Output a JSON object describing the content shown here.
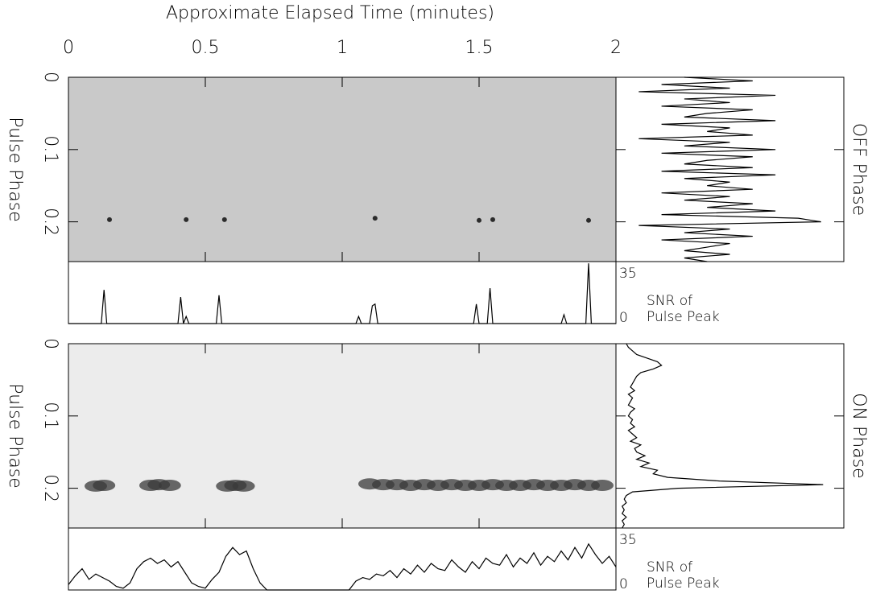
{
  "chart_data": [
    {
      "type": "heatmap",
      "title": "Approximate Elapsed Time (minutes)",
      "ylabel": "Pulse Phase",
      "side_label": "OFF Phase",
      "xlim": [
        0,
        2
      ],
      "xticks": [
        0,
        0.5,
        1,
        1.5,
        2
      ],
      "ylim": [
        0,
        0.255
      ],
      "yticks": [
        0,
        0.1,
        0.2
      ],
      "background": "#c9c9c9",
      "color": "#1a1a1a",
      "spots": {
        "x": [
          0.15,
          0.43,
          0.57,
          1.12,
          1.5,
          1.55,
          1.9
        ],
        "y": [
          0.197,
          0.197,
          0.197,
          0.195,
          0.198,
          0.197,
          0.198
        ]
      }
    },
    {
      "type": "line",
      "label_lines": [
        "SNR of",
        "Pulse Peak"
      ],
      "xlim": [
        0,
        2
      ],
      "ylim": [
        0,
        35
      ],
      "yticks": [
        0,
        35
      ],
      "color": "#000",
      "x": [
        0,
        0.12,
        0.13,
        0.14,
        0.4,
        0.41,
        0.42,
        0.43,
        0.44,
        0.54,
        0.55,
        0.56,
        1.05,
        1.06,
        1.07,
        1.1,
        1.11,
        1.12,
        1.13,
        1.48,
        1.49,
        1.5,
        1.53,
        1.54,
        1.55,
        1.8,
        1.81,
        1.82,
        1.89,
        1.9,
        1.91,
        2
      ],
      "values": [
        0,
        0,
        19,
        0,
        0,
        15,
        0,
        4,
        0,
        0,
        16,
        0,
        0,
        4,
        0,
        0,
        10,
        11,
        0,
        0,
        11,
        0,
        0,
        20,
        0,
        0,
        5,
        0,
        0,
        34,
        0,
        0
      ]
    },
    {
      "type": "profile",
      "xlim": [
        0,
        10
      ],
      "ylim": [
        0,
        0.255
      ],
      "color": "#000",
      "phase": [
        0,
        0.005,
        0.01,
        0.015,
        0.02,
        0.025,
        0.03,
        0.035,
        0.04,
        0.045,
        0.05,
        0.055,
        0.06,
        0.065,
        0.07,
        0.075,
        0.08,
        0.085,
        0.09,
        0.095,
        0.1,
        0.105,
        0.11,
        0.115,
        0.12,
        0.125,
        0.13,
        0.135,
        0.14,
        0.145,
        0.15,
        0.155,
        0.16,
        0.165,
        0.17,
        0.175,
        0.18,
        0.185,
        0.19,
        0.195,
        0.2,
        0.205,
        0.21,
        0.215,
        0.22,
        0.225,
        0.23,
        0.235,
        0.24,
        0.245,
        0.25,
        0.255
      ],
      "values": [
        3,
        6,
        2,
        5,
        1,
        7,
        3,
        5,
        2,
        6,
        4,
        3,
        7,
        2,
        5,
        4,
        6,
        1,
        5,
        3,
        7,
        2,
        6,
        4,
        3,
        6,
        2,
        7,
        3,
        5,
        4,
        6,
        2,
        5,
        3,
        6,
        4,
        7,
        2,
        8,
        9,
        1,
        5,
        3,
        6,
        2,
        5,
        4,
        3,
        5,
        3,
        4
      ]
    },
    {
      "type": "heatmap",
      "ylabel": "Pulse Phase",
      "side_label": "ON Phase",
      "xlim": [
        0,
        2
      ],
      "ylim": [
        0,
        0.255
      ],
      "yticks": [
        0,
        0.1,
        0.2
      ],
      "background": "#ececec",
      "color": "#3a3a3a",
      "spots": {
        "x": [
          0.1,
          0.13,
          0.3,
          0.33,
          0.37,
          0.58,
          0.61,
          0.64,
          1.1,
          1.15,
          1.2,
          1.25,
          1.3,
          1.35,
          1.4,
          1.45,
          1.5,
          1.55,
          1.6,
          1.65,
          1.7,
          1.75,
          1.8,
          1.85,
          1.9,
          1.95
        ],
        "y": [
          0.197,
          0.196,
          0.196,
          0.195,
          0.196,
          0.197,
          0.196,
          0.197,
          0.194,
          0.195,
          0.195,
          0.196,
          0.195,
          0.196,
          0.195,
          0.196,
          0.196,
          0.195,
          0.196,
          0.196,
          0.195,
          0.196,
          0.196,
          0.195,
          0.196,
          0.196
        ]
      }
    },
    {
      "type": "line",
      "label_lines": [
        "SNR of",
        "Pulse Peak"
      ],
      "xlim": [
        0,
        2
      ],
      "ylim": [
        0,
        35
      ],
      "yticks": [
        0,
        35
      ],
      "color": "#000",
      "x": [
        0,
        0.025,
        0.05,
        0.075,
        0.1,
        0.125,
        0.15,
        0.175,
        0.2,
        0.225,
        0.25,
        0.275,
        0.3,
        0.325,
        0.35,
        0.375,
        0.4,
        0.425,
        0.45,
        0.475,
        0.5,
        0.525,
        0.55,
        0.575,
        0.6,
        0.625,
        0.65,
        0.675,
        0.7,
        0.725,
        0.75,
        0.775,
        0.8,
        0.825,
        0.85,
        0.875,
        0.9,
        0.925,
        0.95,
        0.975,
        1,
        1.025,
        1.05,
        1.075,
        1.1,
        1.125,
        1.15,
        1.175,
        1.2,
        1.225,
        1.25,
        1.275,
        1.3,
        1.325,
        1.35,
        1.375,
        1.4,
        1.425,
        1.45,
        1.475,
        1.5,
        1.525,
        1.55,
        1.575,
        1.6,
        1.625,
        1.65,
        1.675,
        1.7,
        1.725,
        1.75,
        1.775,
        1.8,
        1.825,
        1.85,
        1.875,
        1.9,
        1.925,
        1.95,
        1.975,
        2
      ],
      "values": [
        3,
        8,
        12,
        6,
        9,
        7,
        5,
        2,
        1,
        4,
        12,
        16,
        18,
        15,
        17,
        13,
        16,
        10,
        4,
        2,
        1,
        6,
        10,
        19,
        24,
        20,
        22,
        12,
        4,
        0,
        0,
        0,
        0,
        0,
        0,
        0,
        0,
        0,
        0,
        0,
        0,
        0,
        5,
        7,
        6,
        9,
        8,
        11,
        7,
        12,
        9,
        14,
        10,
        15,
        12,
        11,
        17,
        13,
        10,
        16,
        12,
        18,
        15,
        14,
        20,
        13,
        18,
        15,
        21,
        14,
        19,
        16,
        22,
        17,
        24,
        18,
        26,
        20,
        15,
        19,
        13
      ]
    },
    {
      "type": "profile",
      "xlim": [
        0,
        11
      ],
      "ylim": [
        0,
        0.255
      ],
      "color": "#000",
      "phase": [
        0,
        0.005,
        0.01,
        0.015,
        0.02,
        0.025,
        0.03,
        0.035,
        0.04,
        0.045,
        0.05,
        0.055,
        0.06,
        0.065,
        0.07,
        0.075,
        0.08,
        0.085,
        0.09,
        0.095,
        0.1,
        0.105,
        0.11,
        0.115,
        0.12,
        0.125,
        0.13,
        0.135,
        0.14,
        0.145,
        0.15,
        0.155,
        0.16,
        0.165,
        0.17,
        0.175,
        0.18,
        0.185,
        0.19,
        0.195,
        0.2,
        0.205,
        0.21,
        0.215,
        0.22,
        0.225,
        0.23,
        0.235,
        0.24,
        0.245,
        0.25,
        0.255
      ],
      "values": [
        0.5,
        0.6,
        0.8,
        1.0,
        1.5,
        2.0,
        2.2,
        1.8,
        1.2,
        1.0,
        0.9,
        0.8,
        0.7,
        0.9,
        0.6,
        0.8,
        0.7,
        0.6,
        0.9,
        0.7,
        0.6,
        0.8,
        0.7,
        0.9,
        0.6,
        0.8,
        1.0,
        0.7,
        1.2,
        0.9,
        1.0,
        1.4,
        1.0,
        1.6,
        1.2,
        2.0,
        1.8,
        2.5,
        5.0,
        10.0,
        3.0,
        0.8,
        0.5,
        0.4,
        0.5,
        0.3,
        0.4,
        0.3,
        0.5,
        0.3,
        0.4,
        0.3
      ]
    }
  ]
}
